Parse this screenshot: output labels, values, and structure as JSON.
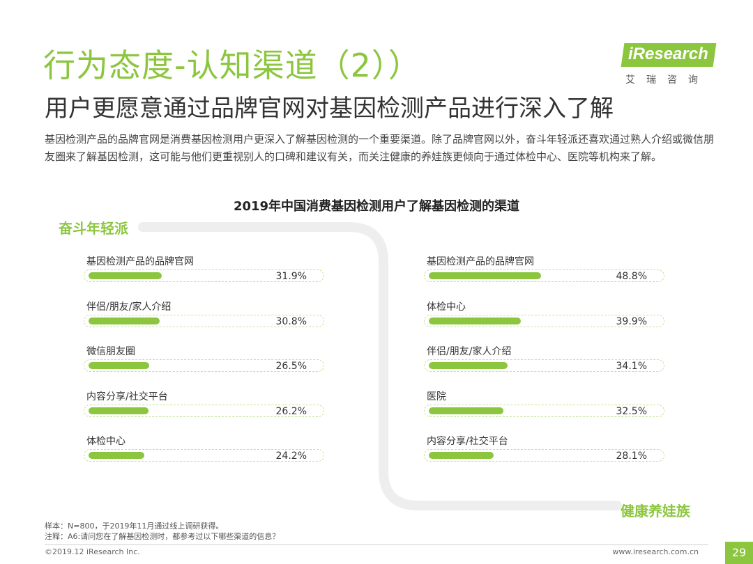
{
  "header": {
    "title": "行为态度-认知渠道（2））",
    "subtitle": "用户更愿意通过品牌官网对基因检测产品进行深入了解",
    "description": "基因检测产品的品牌官网是消费基因检测用户更深入了解基因检测的一个重要渠道。除了品牌官网以外，奋斗年轻派还喜欢通过熟人介绍或微信朋友圈来了解基因检测，这可能与他们更重视别人的口碑和建议有关，而关注健康的养娃族更倾向于通过体检中心、医院等机构来了解。"
  },
  "logo": {
    "text": "iResearch",
    "cn": "艾瑞咨询"
  },
  "chart_data": {
    "type": "bar",
    "title": "2019年中国消费基因检测用户了解基因检测的渠道",
    "xlim": [
      0,
      100
    ],
    "groups": [
      {
        "name": "奋斗年轻派",
        "categories": [
          "基因检测产品的品牌官网",
          "伴侣/朋友/家人介绍",
          "微信朋友圈",
          "内容分享/社交平台",
          "体检中心"
        ],
        "values": [
          31.9,
          30.8,
          26.5,
          26.2,
          24.2
        ],
        "labels": [
          "31.9%",
          "30.8%",
          "26.5%",
          "26.2%",
          "24.2%"
        ]
      },
      {
        "name": "健康养娃族",
        "categories": [
          "基因检测产品的品牌官网",
          "体检中心",
          "伴侣/朋友/家人介绍",
          "医院",
          "内容分享/社交平台"
        ],
        "values": [
          48.8,
          39.9,
          34.1,
          32.5,
          28.1
        ],
        "labels": [
          "48.8%",
          "39.9%",
          "34.1%",
          "32.5%",
          "28.1%"
        ]
      }
    ]
  },
  "colors": {
    "accent": "#8cc63f",
    "track": "#eeeeee"
  },
  "footer": {
    "sample": "样本：N=800，于2019年11月通过线上调研获得。",
    "note": "注释：A6:请问您在了解基因检测时，都参考过以下哪些渠道的信息？",
    "copyright": "©2019.12 iResearch Inc.",
    "website": "www.iresearch.com.cn",
    "page": "29"
  }
}
